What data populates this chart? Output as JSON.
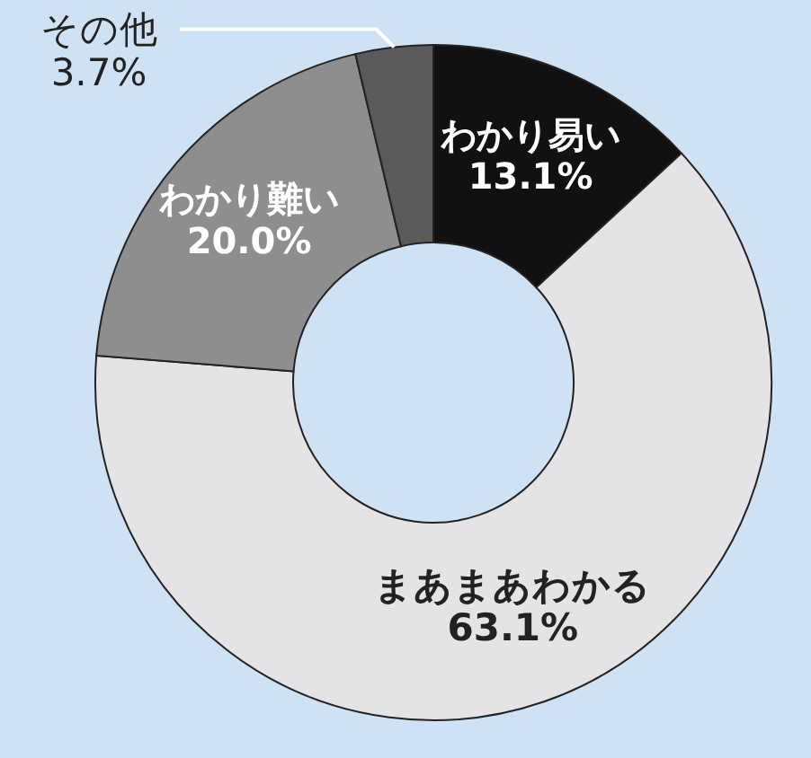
{
  "chart_data": {
    "type": "donut",
    "categories": [
      "わかり易い",
      "まあまあわかる",
      "わかり難い",
      "その他"
    ],
    "values": [
      13.1,
      63.1,
      20.0,
      3.7
    ],
    "value_labels": [
      "13.1%",
      "63.1%",
      "20.0%",
      "3.7%"
    ],
    "colors": [
      "#111111",
      "#e4e4e6",
      "#8e8e8e",
      "#5a5a5a"
    ],
    "legend": false
  }
}
